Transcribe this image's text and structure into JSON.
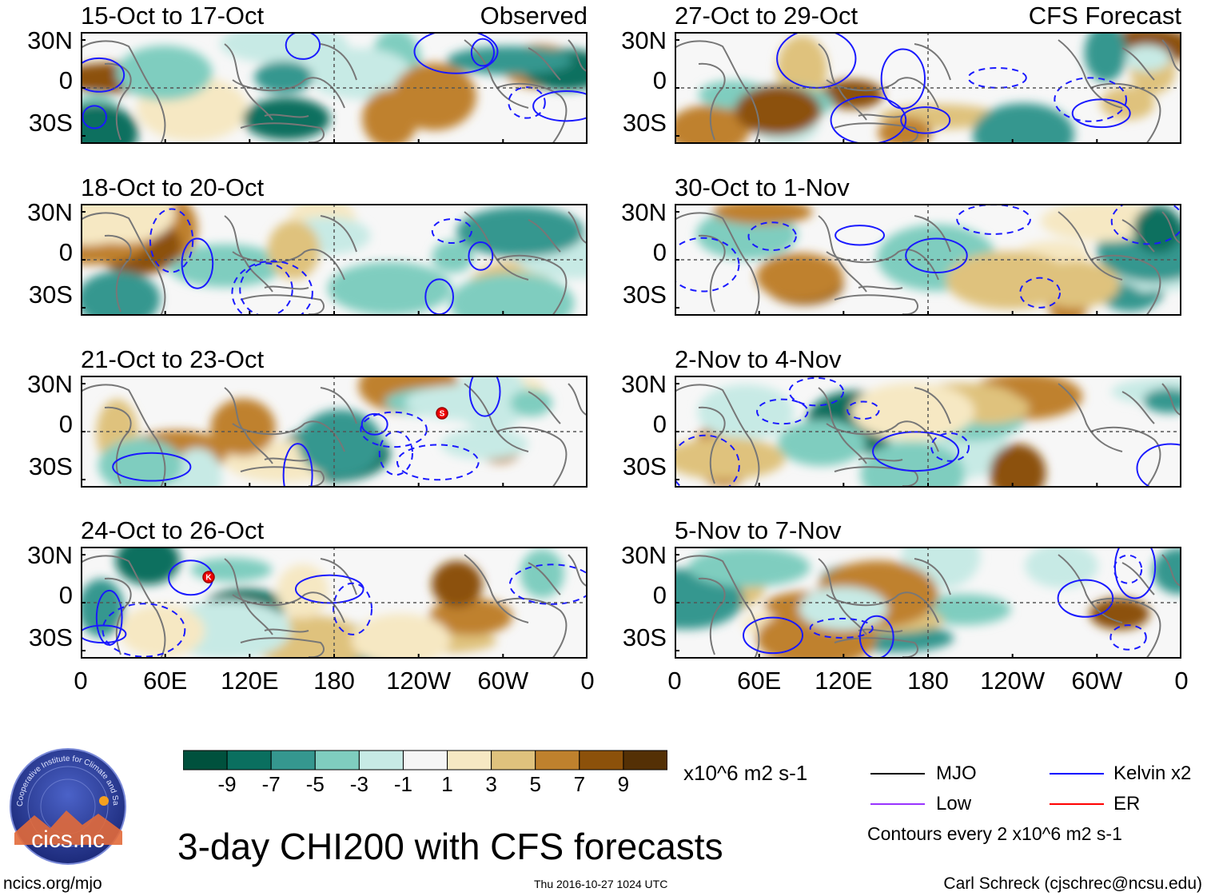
{
  "columns": {
    "left_label": "Observed",
    "right_label": "CFS Forecast"
  },
  "panels": [
    {
      "id": "p1",
      "title": "15-Oct to 17-Oct"
    },
    {
      "id": "p2",
      "title": "18-Oct to 20-Oct"
    },
    {
      "id": "p3",
      "title": "21-Oct to 23-Oct"
    },
    {
      "id": "p4",
      "title": "24-Oct to 26-Oct"
    },
    {
      "id": "p5",
      "title": "27-Oct to 29-Oct"
    },
    {
      "id": "p6",
      "title": "30-Oct to 1-Nov"
    },
    {
      "id": "p7",
      "title": "2-Nov to 4-Nov"
    },
    {
      "id": "p8",
      "title": "5-Nov to 7-Nov"
    }
  ],
  "y_ticks": [
    "30N",
    "0",
    "30S"
  ],
  "x_ticks": [
    "0",
    "60E",
    "120E",
    "180",
    "120W",
    "60W",
    "0"
  ],
  "colorbar": {
    "tick_labels": [
      "-9",
      "-7",
      "-5",
      "-3",
      "-1",
      "1",
      "3",
      "5",
      "7",
      "9"
    ],
    "colors": [
      "#00513d",
      "#0a6f5f",
      "#35978f",
      "#7fcdbf",
      "#c7eae5",
      "#f5f5f5",
      "#f6e8c3",
      "#dfc27d",
      "#bf812d",
      "#8c510a",
      "#543005"
    ],
    "units": "x10^6 m2 s-1"
  },
  "legend": {
    "items": [
      {
        "label": "MJO",
        "color": "#000000"
      },
      {
        "label": "Kelvin x2",
        "color": "#0000ff"
      },
      {
        "label": "Low",
        "color": "#9933ff"
      },
      {
        "label": "ER",
        "color": "#ff0000"
      }
    ],
    "note": "Contours every 2 x10^6 m2 s-1"
  },
  "markers": [
    {
      "panel": "p3",
      "letter": "S"
    },
    {
      "panel": "p4",
      "letter": "K"
    }
  ],
  "main_title": "3-day CHI200 with CFS forecasts",
  "logo_text": "cics.nc",
  "logo_ring_text": "Cooperative Institute for Climate and Satellites",
  "footer": {
    "left": "ncics.org/mjo",
    "center": "Thu 2016-10-27 1024 UTC",
    "right": "Carl Schreck (cjschrec@ncsu.edu)"
  }
}
